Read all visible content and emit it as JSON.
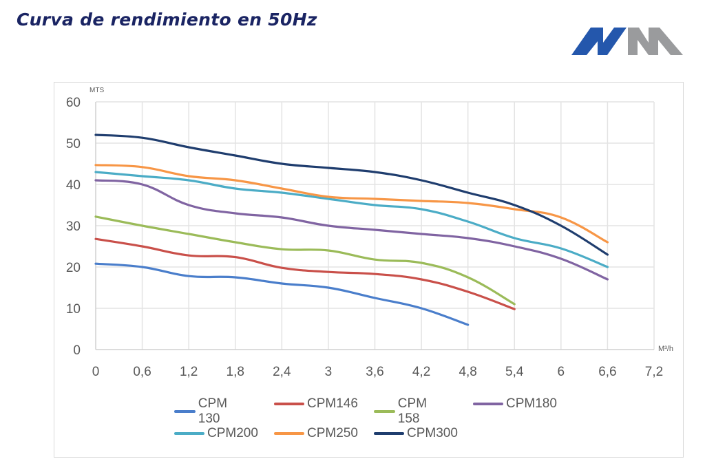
{
  "header": {
    "title": "Curva de rendimiento en 50Hz",
    "logo": {
      "name": "MM-logo",
      "colors": {
        "left": "#2457ac",
        "right": "#9a9b9d"
      }
    }
  },
  "chart_data": {
    "type": "line",
    "title": "",
    "xlabel": "M³/h",
    "ylabel": "MTS",
    "xlim": [
      0,
      7.2
    ],
    "ylim": [
      0,
      60
    ],
    "x_ticks": [
      "0",
      "0,6",
      "1,2",
      "1,8",
      "2,4",
      "3",
      "3,6",
      "4,2",
      "4,8",
      "5,4",
      "6",
      "6,6",
      "7,2"
    ],
    "y_ticks": [
      "0",
      "10",
      "20",
      "30",
      "40",
      "50",
      "60"
    ],
    "grid": true,
    "legend_position": "bottom",
    "x": [
      0,
      0.6,
      1.2,
      1.8,
      2.4,
      3.0,
      3.6,
      4.2,
      4.8,
      5.4,
      6.0,
      6.6
    ],
    "series": [
      {
        "name": "CPM 130",
        "color": "#4a7ecb",
        "values": [
          20.8,
          20.0,
          17.8,
          17.5,
          16.0,
          15.0,
          12.5,
          10.0,
          6.0
        ]
      },
      {
        "name": "CPM146",
        "color": "#c9504a",
        "values": [
          26.8,
          25.0,
          22.8,
          22.4,
          19.8,
          18.8,
          18.3,
          17.0,
          14.0,
          9.8
        ]
      },
      {
        "name": "CPM 158",
        "color": "#9bbb59",
        "values": [
          32.2,
          30.0,
          28.0,
          26.0,
          24.3,
          24.0,
          21.8,
          21.0,
          17.5,
          11.0
        ]
      },
      {
        "name": "CPM180",
        "color": "#8064a2",
        "values": [
          41.0,
          40.0,
          35.0,
          33.0,
          32.0,
          30.0,
          29.0,
          28.0,
          27.0,
          25.0,
          22.0,
          17.0
        ]
      },
      {
        "name": "CPM200",
        "color": "#4bacc6",
        "values": [
          43.0,
          42.0,
          41.0,
          39.0,
          38.0,
          36.5,
          35.0,
          34.0,
          31.0,
          27.0,
          24.5,
          20.0
        ]
      },
      {
        "name": "CPM250",
        "color": "#f79646",
        "values": [
          44.7,
          44.2,
          42.0,
          41.0,
          39.0,
          37.0,
          36.5,
          36.0,
          35.5,
          34.0,
          32.0,
          26.0
        ]
      },
      {
        "name": "CPM300",
        "color": "#1f3d6e",
        "values": [
          52.0,
          51.3,
          49.0,
          47.0,
          45.0,
          44.0,
          43.0,
          41.0,
          38.0,
          35.0,
          30.0,
          23.0
        ]
      }
    ]
  }
}
